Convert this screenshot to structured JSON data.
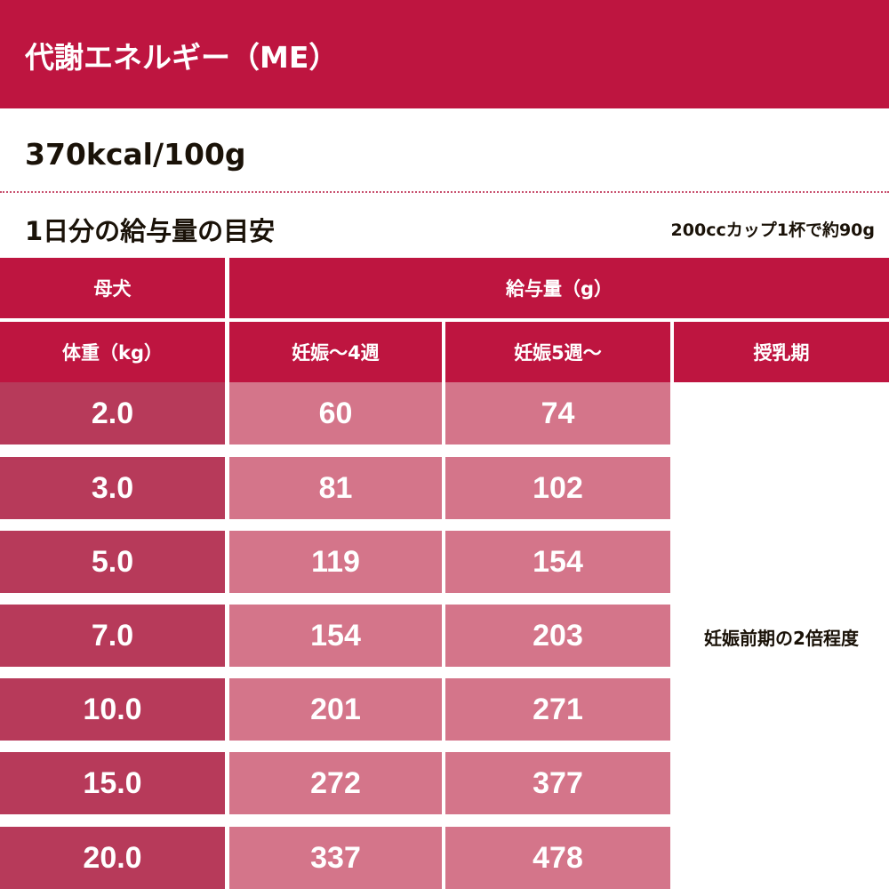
{
  "header": {
    "title": "代謝エネルギー（ME）"
  },
  "energy": "370kcal/100g",
  "feeding": {
    "title": "1日分の給与量の目安",
    "note": "200ccカップ1杯で約90g"
  },
  "table": {
    "group_headers": [
      "母犬",
      "給与量（g）"
    ],
    "headers": [
      "体重（kg）",
      "妊娠～4週",
      "妊娠5週～",
      "授乳期"
    ],
    "rows": [
      [
        "2.0",
        60,
        74
      ],
      [
        "3.0",
        81,
        102
      ],
      [
        "5.0",
        119,
        154
      ],
      [
        "7.0",
        154,
        203
      ],
      [
        "10.0",
        201,
        271
      ],
      [
        "15.0",
        272,
        377
      ],
      [
        "20.0",
        337,
        478
      ]
    ],
    "lactation": "妊娠前期の2倍程度"
  }
}
